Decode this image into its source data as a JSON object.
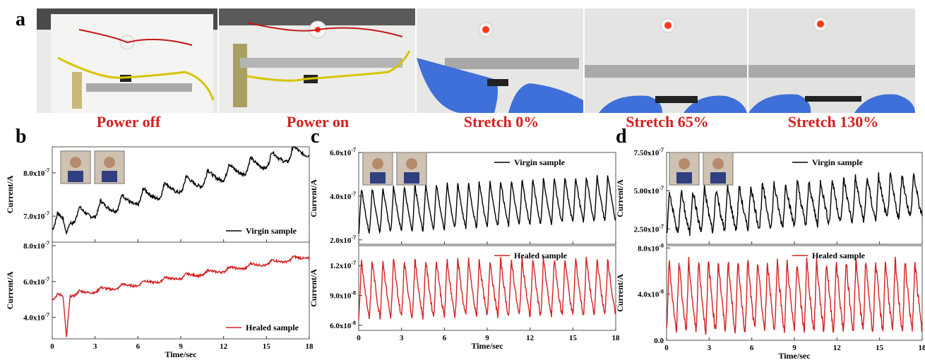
{
  "panel_letters": {
    "a": "a",
    "b": "b",
    "c": "c",
    "d": "d"
  },
  "photo_captions": [
    "Power off",
    "Power on",
    "Stretch 0%",
    "Stretch 65%",
    "Stretch 130%"
  ],
  "colors": {
    "virgin": "#000000",
    "healed": "#d42020",
    "caption": "#d42020"
  },
  "chart_data": [
    {
      "id": "b",
      "type": "line",
      "xlabel": "Time/sec",
      "ylabel": "Current/A",
      "xlim": [
        0,
        18
      ],
      "xticks": [
        "0",
        "3",
        "6",
        "9",
        "12",
        "15",
        "18"
      ],
      "inset": "photos of sensor on throat",
      "subplots": [
        {
          "series": [
            {
              "name": "Virgin sample",
              "color": "#000000"
            }
          ],
          "ylim": [
            6.4e-07,
            8.6e-07
          ],
          "yticks": [
            {
              "v": 7e-07,
              "label": "7.0x10-7"
            },
            {
              "v": 8e-07,
              "label": "8.0x10-7"
            }
          ],
          "legend": "bottom-right",
          "pattern": {
            "start": 6.7e-07,
            "end": 8.4e-07,
            "amp": 3.5e-08,
            "cycles": 12,
            "noise": 4e-09,
            "dip": {
              "t": 1.0,
              "v": 6.6e-07
            }
          }
        },
        {
          "series": [
            {
              "name": "Healed sample",
              "color": "#d42020"
            }
          ],
          "ylim": [
            2.8e-07,
            8.2e-07
          ],
          "yticks": [
            {
              "v": 4e-07,
              "label": "4.0x10-7"
            },
            {
              "v": 6e-07,
              "label": "6.0x10-7"
            },
            {
              "v": 8e-07,
              "label": "8.0x10-7"
            }
          ],
          "legend": "bottom-right",
          "pattern": {
            "start": 5e-07,
            "end": 7.3e-07,
            "amp": 2.5e-08,
            "cycles": 12,
            "noise": 6e-09,
            "dip": {
              "t": 1.0,
              "v": 2.9e-07
            }
          }
        }
      ]
    },
    {
      "id": "c",
      "type": "line",
      "xlabel": "Time/sec",
      "ylabel": "Current/A",
      "xlim": [
        0,
        18
      ],
      "xticks": [
        "0",
        "3",
        "6",
        "9",
        "12",
        "15",
        "18"
      ],
      "inset": "photos of sensor on finger",
      "subplots": [
        {
          "series": [
            {
              "name": "Virgin sample",
              "color": "#000000"
            }
          ],
          "ylim": [
            1.8e-07,
            6e-07
          ],
          "yticks": [
            {
              "v": 2e-07,
              "label": "2.0x10-7"
            },
            {
              "v": 4e-07,
              "label": "4.0x10-7"
            },
            {
              "v": 6e-07,
              "label": "6.0x10-7"
            }
          ],
          "legend": "top-right",
          "pattern": {
            "start": 2.3e-07,
            "end": 2.9e-07,
            "amp": 2.1e-07,
            "cycles": 24,
            "noise": 8e-09,
            "rise": 0.35
          }
        },
        {
          "series": [
            {
              "name": "Healed sample",
              "color": "#d42020"
            }
          ],
          "ylim": [
            5.5e-08,
            1.4e-07
          ],
          "yticks": [
            {
              "v": 6e-08,
              "label": "6.0x10-8"
            },
            {
              "v": 9e-08,
              "label": "9.0x10-8"
            },
            {
              "v": 1.2e-07,
              "label": "1.2x10-7"
            }
          ],
          "legend": "top-right",
          "pattern": {
            "start": 6.8e-08,
            "end": 7e-08,
            "amp": 5.8e-08,
            "cycles": 24,
            "noise": 3e-09,
            "rise": 0.0
          }
        }
      ]
    },
    {
      "id": "d",
      "type": "line",
      "xlabel": "Time/sec",
      "ylabel": "Current/A",
      "xlim": [
        0,
        18
      ],
      "xticks": [
        "0",
        "3",
        "6",
        "9",
        "12",
        "15",
        "18"
      ],
      "inset": "photos of sensor on wrist",
      "subplots": [
        {
          "series": [
            {
              "name": "Virgin sample",
              "color": "#000000"
            }
          ],
          "ylim": [
            1.5e-07,
            7.5e-07
          ],
          "yticks": [
            {
              "v": 2.5e-07,
              "label": "2.50x10-7"
            },
            {
              "v": 5e-07,
              "label": "5.00x10-7"
            },
            {
              "v": 7.5e-07,
              "label": "7.50x10-7"
            }
          ],
          "legend": "top-right",
          "pattern": {
            "start": 2.1e-07,
            "end": 3.3e-07,
            "amp": 2.9e-07,
            "cycles": 22,
            "noise": 2.5e-08,
            "rise": 0.3
          }
        },
        {
          "series": [
            {
              "name": "Healed sample",
              "color": "#d42020"
            }
          ],
          "ylim": [
            0,
            8.2e-08
          ],
          "yticks": [
            {
              "v": 0,
              "label": "0.0"
            },
            {
              "v": 4e-08,
              "label": "4.0x10-8"
            },
            {
              "v": 8e-08,
              "label": "8.0x10-8"
            }
          ],
          "legend": "top-right",
          "pattern": {
            "start": 8e-09,
            "end": 8e-09,
            "amp": 6.2e-08,
            "cycles": 26,
            "noise": 4e-09,
            "rise": 0.0
          }
        }
      ]
    }
  ]
}
